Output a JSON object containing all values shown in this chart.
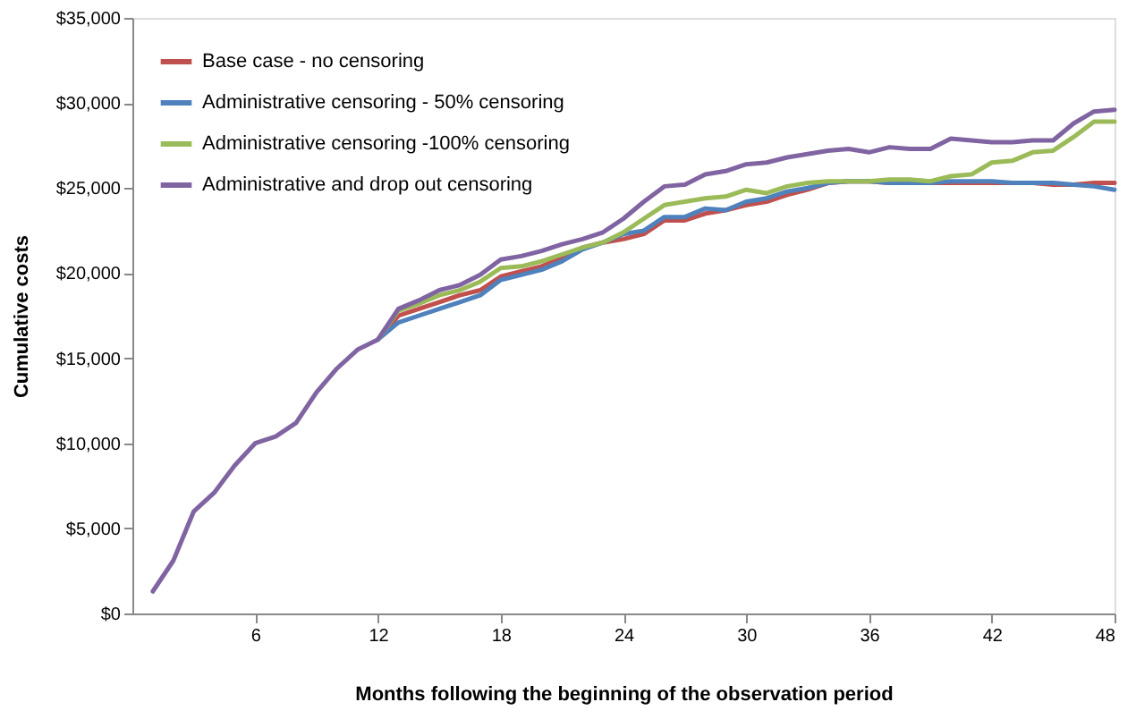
{
  "chart_data": {
    "type": "line",
    "xlabel": "Months following the beginning of the observation period",
    "ylabel": "Cumulative costs",
    "x": [
      1,
      2,
      3,
      4,
      5,
      6,
      7,
      8,
      9,
      10,
      11,
      12,
      13,
      14,
      15,
      16,
      17,
      18,
      19,
      20,
      21,
      22,
      23,
      24,
      25,
      26,
      27,
      28,
      29,
      30,
      31,
      32,
      33,
      34,
      35,
      36,
      37,
      38,
      39,
      40,
      41,
      42,
      43,
      44,
      45,
      46,
      47,
      48
    ],
    "series": [
      {
        "name": "Base case - no censoring",
        "color": "#c0504d",
        "values": [
          null,
          null,
          null,
          null,
          null,
          null,
          null,
          null,
          null,
          null,
          null,
          16100,
          17500,
          17900,
          18300,
          18700,
          19000,
          19800,
          20100,
          20400,
          20900,
          21500,
          21800,
          22000,
          22300,
          23100,
          23100,
          23500,
          23700,
          24000,
          24200,
          24600,
          24900,
          25300,
          25400,
          25400,
          25300,
          25300,
          25300,
          25300,
          25300,
          25300,
          25300,
          25300,
          25200,
          25200,
          25300,
          25300
        ]
      },
      {
        "name": "Administrative censoring - 50% censoring",
        "color": "#4f81bd",
        "values": [
          null,
          null,
          null,
          null,
          null,
          null,
          null,
          null,
          null,
          null,
          null,
          16100,
          17100,
          17500,
          17900,
          18300,
          18700,
          19600,
          19900,
          20200,
          20700,
          21400,
          21800,
          22300,
          22500,
          23300,
          23300,
          23800,
          23700,
          24200,
          24400,
          24800,
          25000,
          25300,
          25400,
          25400,
          25300,
          25300,
          25300,
          25400,
          25400,
          25400,
          25300,
          25300,
          25300,
          25200,
          25100,
          24900
        ]
      },
      {
        "name": "Administrative censoring -100% censoring",
        "color": "#9bbb59",
        "values": [
          null,
          null,
          null,
          null,
          null,
          null,
          null,
          null,
          null,
          null,
          null,
          16100,
          17800,
          18200,
          18700,
          19000,
          19500,
          20300,
          20400,
          20700,
          21100,
          21500,
          21800,
          22400,
          23200,
          24000,
          24200,
          24400,
          24500,
          24900,
          24700,
          25100,
          25300,
          25400,
          25400,
          25400,
          25500,
          25500,
          25400,
          25700,
          25800,
          26500,
          26600,
          27100,
          27200,
          28000,
          28900,
          28900
        ]
      },
      {
        "name": "Administrative and drop out censoring",
        "color": "#8064a2",
        "values": [
          1300,
          3100,
          6000,
          7100,
          8700,
          10000,
          10400,
          11200,
          13000,
          14400,
          15500,
          16100,
          17900,
          18400,
          19000,
          19300,
          19900,
          20800,
          21000,
          21300,
          21700,
          22000,
          22400,
          23200,
          24200,
          25100,
          25200,
          25800,
          26000,
          26400,
          26500,
          26800,
          27000,
          27200,
          27300,
          27100,
          27400,
          27300,
          27300,
          27900,
          27800,
          27700,
          27700,
          27800,
          27800,
          28800,
          29500,
          29600
        ]
      }
    ],
    "xlim": [
      0,
      48
    ],
    "xticks": [
      6,
      12,
      18,
      24,
      30,
      36,
      42,
      48
    ],
    "ylim": [
      0,
      35000
    ],
    "yticks": [
      {
        "value": 0,
        "label": "$0"
      },
      {
        "value": 5000,
        "label": "$5,000"
      },
      {
        "value": 10000,
        "label": "$10,000"
      },
      {
        "value": 15000,
        "label": "$15,000"
      },
      {
        "value": 20000,
        "label": "$20,000"
      },
      {
        "value": 25000,
        "label": "$25,000"
      },
      {
        "value": 30000,
        "label": "$30,000"
      },
      {
        "value": 35000,
        "label": "$35,000"
      }
    ],
    "grid": false,
    "legend": "top left",
    "marker": "none",
    "line_style": "solid"
  }
}
